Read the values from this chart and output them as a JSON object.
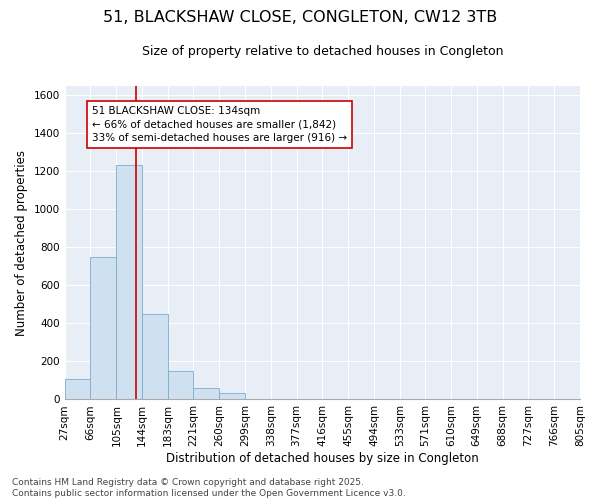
{
  "title": "51, BLACKSHAW CLOSE, CONGLETON, CW12 3TB",
  "subtitle": "Size of property relative to detached houses in Congleton",
  "xlabel": "Distribution of detached houses by size in Congleton",
  "ylabel": "Number of detached properties",
  "bar_color": "#cfe0f0",
  "bar_edge_color": "#7aadcf",
  "plot_bg_color": "#e8eef5",
  "fig_bg_color": "#ffffff",
  "grid_color": "#ffffff",
  "bin_edges": [
    27,
    66,
    105,
    144,
    183,
    221,
    260,
    299,
    338,
    377,
    416,
    455,
    494,
    533,
    571,
    610,
    649,
    688,
    727,
    766,
    805
  ],
  "bin_labels": [
    "27sqm",
    "66sqm",
    "105sqm",
    "144sqm",
    "183sqm",
    "221sqm",
    "260sqm",
    "299sqm",
    "338sqm",
    "377sqm",
    "416sqm",
    "455sqm",
    "494sqm",
    "533sqm",
    "571sqm",
    "610sqm",
    "649sqm",
    "688sqm",
    "727sqm",
    "766sqm",
    "805sqm"
  ],
  "counts": [
    110,
    750,
    1230,
    450,
    150,
    60,
    35,
    0,
    0,
    0,
    0,
    0,
    0,
    0,
    0,
    0,
    0,
    0,
    0,
    0
  ],
  "property_size": 134,
  "vline_color": "#cc0000",
  "ylim": [
    0,
    1650
  ],
  "yticks": [
    0,
    200,
    400,
    600,
    800,
    1000,
    1200,
    1400,
    1600
  ],
  "annotation_text": "51 BLACKSHAW CLOSE: 134sqm\n← 66% of detached houses are smaller (1,842)\n33% of semi-detached houses are larger (916) →",
  "annotation_box_color": "#ffffff",
  "annotation_box_edge": "#cc0000",
  "footer_text": "Contains HM Land Registry data © Crown copyright and database right 2025.\nContains public sector information licensed under the Open Government Licence v3.0.",
  "title_fontsize": 11.5,
  "subtitle_fontsize": 9,
  "axis_label_fontsize": 8.5,
  "tick_fontsize": 7.5,
  "annotation_fontsize": 7.5,
  "footer_fontsize": 6.5
}
